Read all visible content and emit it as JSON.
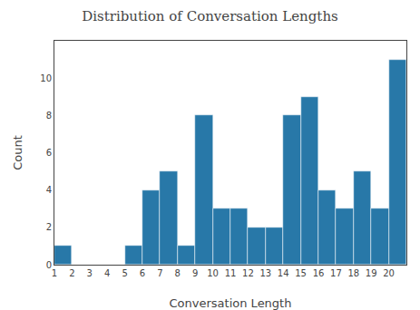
{
  "chart_data": {
    "type": "histogram",
    "title": "Distribution of Conversation Lengths",
    "xlabel": "Conversation Length",
    "ylabel": "Count",
    "color": "#2878a8",
    "bins": [
      1,
      2,
      3,
      4,
      5,
      6,
      7,
      8,
      9,
      10,
      11,
      12,
      13,
      14,
      15,
      16,
      17,
      18,
      19,
      20,
      21
    ],
    "values": [
      1,
      0,
      0,
      0,
      1,
      4,
      5,
      1,
      8,
      3,
      3,
      2,
      2,
      8,
      9,
      4,
      3,
      5,
      3,
      11
    ],
    "xlim": [
      1,
      21
    ],
    "ylim": [
      0,
      12
    ],
    "xticks": [
      1,
      2,
      3,
      4,
      5,
      6,
      7,
      8,
      9,
      10,
      11,
      12,
      13,
      14,
      15,
      16,
      17,
      18,
      19,
      20
    ],
    "yticks": [
      0,
      2,
      4,
      6,
      8,
      10
    ],
    "grid": false
  }
}
